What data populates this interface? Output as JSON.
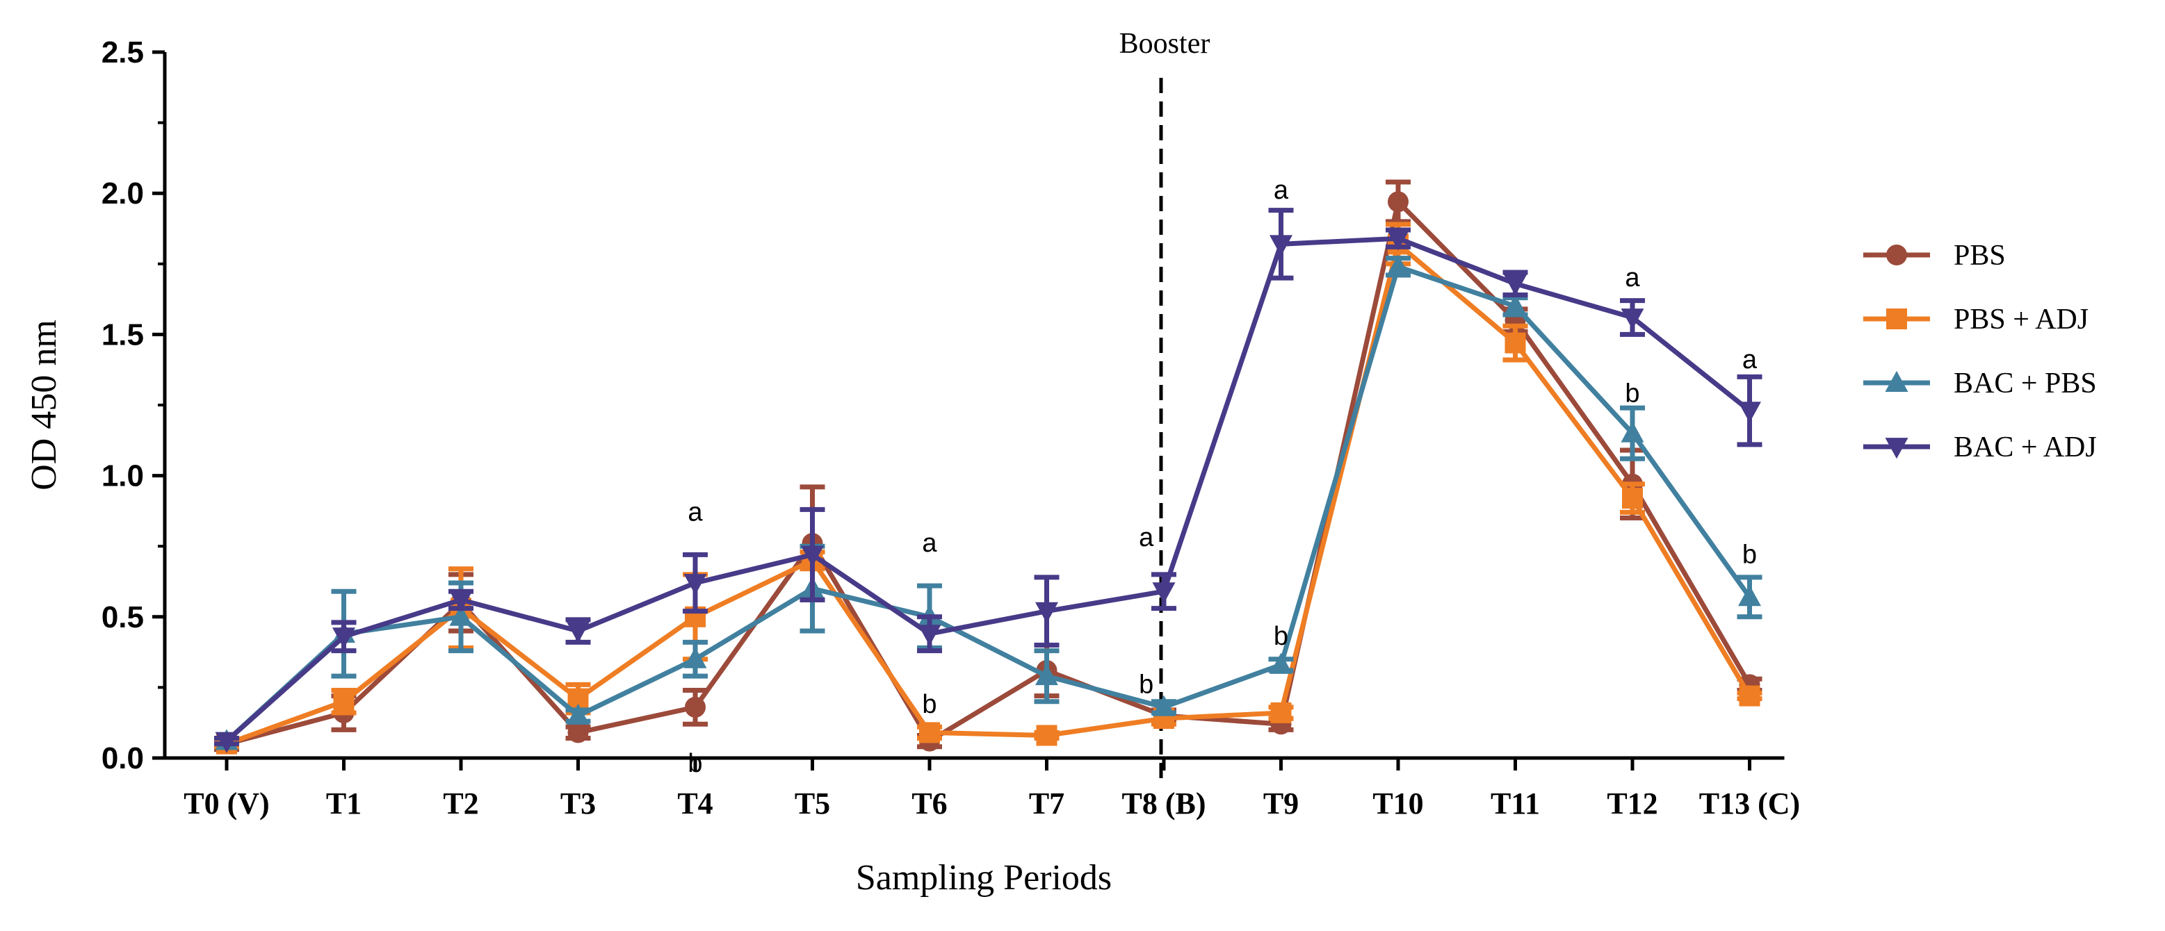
{
  "chart_data": {
    "type": "line",
    "title": "",
    "xlabel": "Sampling Periods",
    "ylabel": "OD 450 nm",
    "ylim": [
      0,
      2.5
    ],
    "yticks": [
      "0.0",
      "0.5",
      "1.0",
      "1.5",
      "2.0",
      "2.5"
    ],
    "ytick_values": [
      0,
      0.5,
      1.0,
      1.5,
      2.0,
      2.5
    ],
    "categories": [
      "T0 (V)",
      "T1",
      "T2",
      "T3",
      "T4",
      "T5",
      "T6",
      "T7",
      "T8 (B)",
      "T9",
      "T10",
      "T11",
      "T12",
      "T13 (C)"
    ],
    "grid": false,
    "legend_position": "right",
    "booster": {
      "label": "Booster",
      "category_index": 8
    },
    "series": [
      {
        "name": "PBS",
        "color": "#9c4a3a",
        "marker": "circle",
        "values": [
          0.05,
          0.16,
          0.55,
          0.09,
          0.18,
          0.76,
          0.06,
          0.31,
          0.15,
          0.12,
          1.97,
          1.55,
          0.97,
          0.26
        ],
        "errors": [
          0.02,
          0.06,
          0.1,
          0.02,
          0.06,
          0.2,
          0.02,
          0.09,
          0.02,
          0.02,
          0.07,
          0.04,
          0.12,
          0.02
        ]
      },
      {
        "name": "PBS + ADJ",
        "color": "#ef7d23",
        "marker": "square",
        "values": [
          0.05,
          0.2,
          0.53,
          0.21,
          0.5,
          0.7,
          0.09,
          0.08,
          0.14,
          0.16,
          1.82,
          1.47,
          0.92,
          0.22
        ],
        "errors": [
          0.01,
          0.04,
          0.14,
          0.05,
          0.15,
          0.03,
          0.02,
          0.01,
          0.02,
          0.02,
          0.07,
          0.06,
          0.05,
          0.01
        ]
      },
      {
        "name": "BAC + PBS",
        "color": "#41809f",
        "marker": "triangle-up",
        "values": [
          0.06,
          0.44,
          0.5,
          0.15,
          0.35,
          0.6,
          0.5,
          0.29,
          0.18,
          0.33,
          1.74,
          1.6,
          1.15,
          0.57
        ],
        "errors": [
          0.01,
          0.15,
          0.12,
          0.02,
          0.06,
          0.15,
          0.11,
          0.09,
          0.02,
          0.02,
          0.03,
          0.03,
          0.09,
          0.07
        ]
      },
      {
        "name": "BAC + ADJ",
        "color": "#473a88",
        "marker": "triangle-down",
        "values": [
          0.06,
          0.43,
          0.56,
          0.45,
          0.62,
          0.72,
          0.44,
          0.52,
          0.59,
          1.82,
          1.84,
          1.68,
          1.56,
          1.23
        ],
        "errors": [
          0.01,
          0.05,
          0.03,
          0.04,
          0.1,
          0.16,
          0.06,
          0.12,
          0.06,
          0.12,
          0.03,
          0.04,
          0.06,
          0.12
        ]
      }
    ],
    "annotations": [
      {
        "text": "a",
        "category_index": 4,
        "y": 0.87
      },
      {
        "text": "b",
        "category_index": 4,
        "y": -0.02
      },
      {
        "text": "a",
        "category_index": 6,
        "y": 0.76
      },
      {
        "text": "b",
        "category_index": 6,
        "y": 0.19
      },
      {
        "text": "a",
        "category_index": 7.85,
        "y": 0.78
      },
      {
        "text": "b",
        "category_index": 7.85,
        "y": 0.26
      },
      {
        "text": "a",
        "category_index": 9,
        "y": 2.01
      },
      {
        "text": "b",
        "category_index": 9,
        "y": 0.43
      },
      {
        "text": "a",
        "category_index": 12,
        "y": 1.7
      },
      {
        "text": "b",
        "category_index": 12,
        "y": 1.29
      },
      {
        "text": "a",
        "category_index": 13,
        "y": 1.41
      },
      {
        "text": "b",
        "category_index": 13,
        "y": 0.72
      }
    ]
  }
}
